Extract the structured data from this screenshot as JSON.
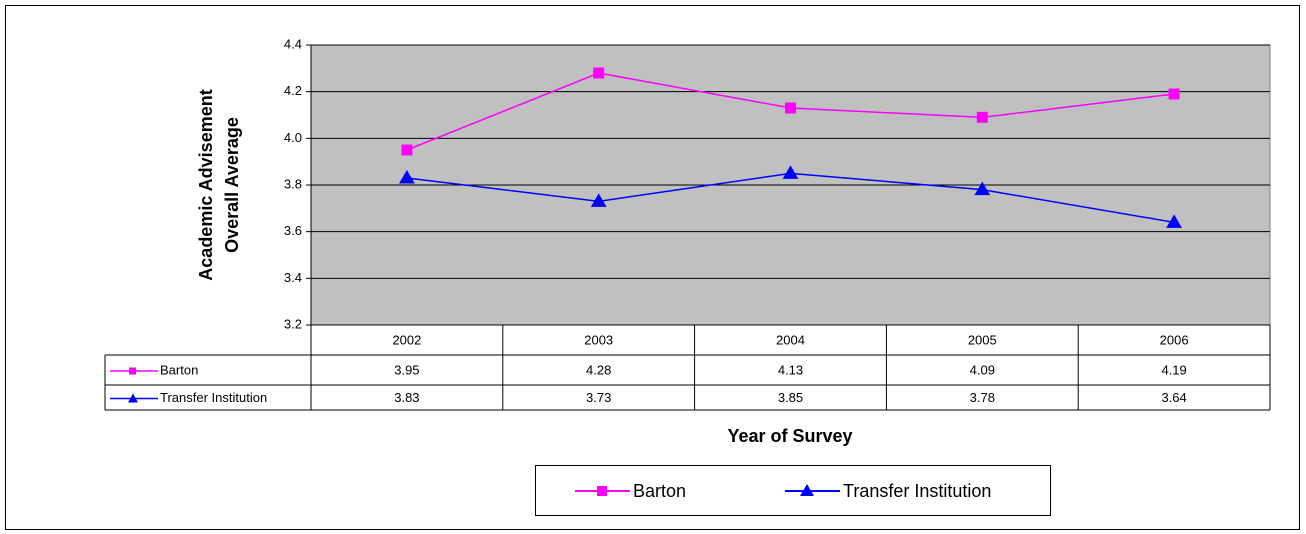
{
  "chart_data": {
    "type": "line",
    "x_label": "Year of Survey",
    "y_label": [
      "Academic Advisement",
      "Overall Average"
    ],
    "categories": [
      "2002",
      "2003",
      "2004",
      "2005",
      "2006"
    ],
    "series": [
      {
        "name": "Barton",
        "color": "#ff00ff",
        "marker": "square",
        "values": [
          3.95,
          4.28,
          4.13,
          4.09,
          4.19
        ]
      },
      {
        "name": "Transfer Institution",
        "color": "#0000ff",
        "marker": "triangle",
        "values": [
          3.83,
          3.73,
          3.85,
          3.78,
          3.64
        ]
      }
    ],
    "ylim": [
      3.2,
      4.4
    ],
    "yticks": [
      3.2,
      3.4,
      3.6,
      3.8,
      {
        "value": 4,
        "label": "4.0"
      },
      4.2,
      4.4
    ],
    "grid": true,
    "plot_background": "#c0c0c0",
    "data_table": true,
    "legend": "bottom"
  }
}
